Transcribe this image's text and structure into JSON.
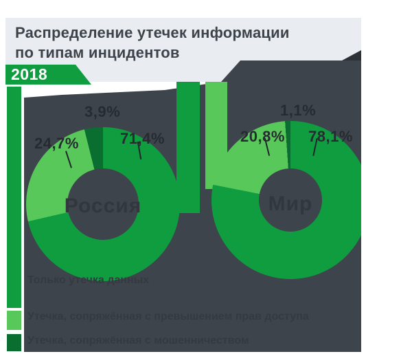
{
  "title": {
    "line1": "Распределение утечек информации",
    "line2": "по типам инцидентов"
  },
  "year_badge": "2018",
  "colors": {
    "panel": "#3e444b",
    "header_bg": "#e9edf1",
    "title_text": "#3c434a",
    "accent_green": "#0f9d3f",
    "light_green": "#58c85a",
    "dark_green": "#0a6e30",
    "callout_text": "#262b31",
    "center_text": "#31373d",
    "legend_text": "#343a41",
    "fold": "#2b3137",
    "leader_line": "#20252a"
  },
  "legend": {
    "items": [
      {
        "color_key": "accent_green",
        "label": "Только утечка данных"
      },
      {
        "color_key": "light_green",
        "label": "Утечка, сопряжённая с превышением прав доступа"
      },
      {
        "color_key": "dark_green",
        "label": "Утечка, сопряжённая с мошенничеством"
      }
    ]
  },
  "chart_data": [
    {
      "type": "pie",
      "title": "Россия",
      "center_label": "Россия",
      "slices": [
        {
          "label": "Только утечка данных",
          "value": 71.4,
          "color_key": "accent_green"
        },
        {
          "label": "Утечка, сопряжённая с превышением прав доступа",
          "value": 24.7,
          "color_key": "light_green"
        },
        {
          "label": "Утечка, сопряжённая с мошенничеством",
          "value": 3.9,
          "color_key": "dark_green"
        }
      ],
      "callouts": [
        "24,7%",
        "3,9%",
        "71,4%"
      ]
    },
    {
      "type": "pie",
      "title": "Мир",
      "center_label": "Мир",
      "slices": [
        {
          "label": "Только утечка данных",
          "value": 78.1,
          "color_key": "accent_green"
        },
        {
          "label": "Утечка, сопряжённая с превышением прав доступа",
          "value": 20.8,
          "color_key": "light_green"
        },
        {
          "label": "Утечка, сопряжённая с мошенничеством",
          "value": 1.1,
          "color_key": "dark_green"
        }
      ],
      "callouts": [
        "20,8%",
        "1,1%",
        "78,1%"
      ]
    }
  ]
}
